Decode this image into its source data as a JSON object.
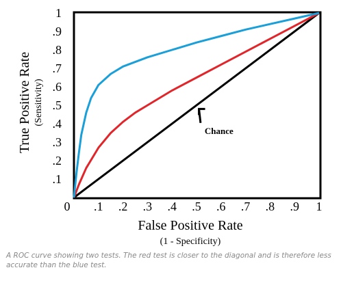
{
  "chart_data": {
    "type": "line",
    "title": "",
    "xlabel": "False Positive Rate",
    "xlabel_sub": "(1 - Specificity)",
    "ylabel": "True Positive Rate",
    "ylabel_sub": "(Sensitivity)",
    "xlim": [
      0,
      1
    ],
    "ylim": [
      0,
      1
    ],
    "x_ticks": [
      "0",
      ".1",
      ".2",
      ".3",
      ".4",
      ".5",
      ".6",
      ".7",
      ".8",
      ".9",
      "1"
    ],
    "y_ticks": [
      ".1",
      ".2",
      ".3",
      ".4",
      ".5",
      ".6",
      ".7",
      ".8",
      ".9",
      "1"
    ],
    "grid": false,
    "legend": "none",
    "series": [
      {
        "color": "#1a9fd8",
        "points": [
          [
            0,
            0
          ],
          [
            0.01,
            0.13
          ],
          [
            0.02,
            0.24
          ],
          [
            0.03,
            0.34
          ],
          [
            0.05,
            0.46
          ],
          [
            0.07,
            0.54
          ],
          [
            0.1,
            0.61
          ],
          [
            0.15,
            0.67
          ],
          [
            0.2,
            0.71
          ],
          [
            0.3,
            0.76
          ],
          [
            0.4,
            0.8
          ],
          [
            0.5,
            0.84
          ],
          [
            0.6,
            0.875
          ],
          [
            0.7,
            0.91
          ],
          [
            0.8,
            0.94
          ],
          [
            0.9,
            0.97
          ],
          [
            1,
            1
          ]
        ]
      },
      {
        "color": "#e0262b",
        "points": [
          [
            0,
            0
          ],
          [
            0.02,
            0.07
          ],
          [
            0.05,
            0.16
          ],
          [
            0.1,
            0.27
          ],
          [
            0.15,
            0.35
          ],
          [
            0.2,
            0.41
          ],
          [
            0.25,
            0.46
          ],
          [
            0.3,
            0.5
          ],
          [
            0.4,
            0.58
          ],
          [
            0.5,
            0.65
          ],
          [
            0.6,
            0.72
          ],
          [
            0.7,
            0.79
          ],
          [
            0.8,
            0.86
          ],
          [
            0.9,
            0.93
          ],
          [
            1,
            1
          ]
        ]
      },
      {
        "color": "#000000",
        "points": [
          [
            0,
            0
          ],
          [
            1,
            1
          ]
        ]
      }
    ],
    "annotations": [
      {
        "text": "Chance",
        "x": 0.55,
        "y": 0.36,
        "arrow_to": [
          0.51,
          0.48
        ]
      }
    ]
  },
  "caption": "A ROC curve showing two tests.  The red test is closer to the diagonal and is therefore less accurate than the blue test."
}
